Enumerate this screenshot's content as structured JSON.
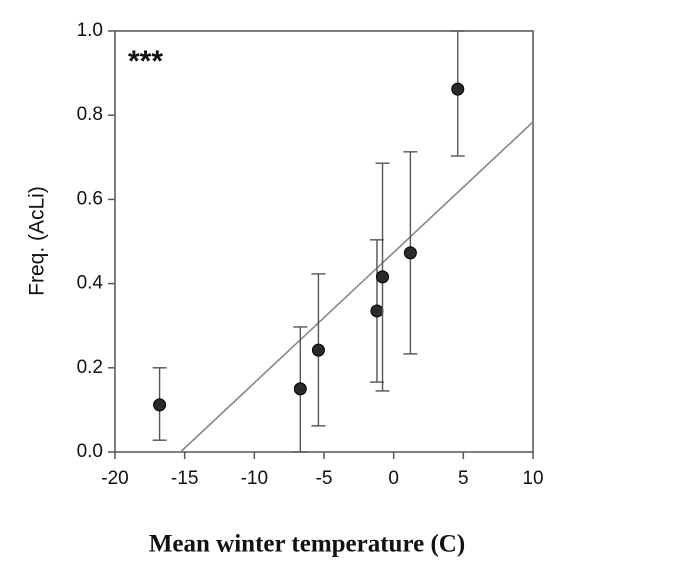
{
  "chart_data": {
    "type": "scatter",
    "annotation": "***",
    "y_label": "Freq. (AcLi)",
    "x_label": "Mean winter temperature (C)",
    "x": [
      -16.8,
      -6.7,
      -5.4,
      -1.2,
      -0.8,
      1.2,
      4.6
    ],
    "values": [
      0.112,
      0.15,
      0.242,
      0.335,
      0.416,
      0.473,
      0.862
    ],
    "lower": [
      0.028,
      0.0,
      0.062,
      0.166,
      0.145,
      0.233,
      0.703
    ],
    "upper": [
      0.2,
      0.297,
      0.423,
      0.504,
      0.686,
      0.713,
      1.0
    ],
    "color": "#2a2a2a",
    "fit": {
      "x": [
        -15.3,
        10
      ],
      "y": [
        0,
        0.784
      ],
      "color": "#888888"
    },
    "xlim": [
      -20,
      10
    ],
    "xticks": [
      -20,
      -15,
      -10,
      -5,
      0,
      5,
      10
    ],
    "ylim": [
      0,
      1
    ],
    "yticks": [
      {
        "value": 0,
        "label": "0.0"
      },
      0.2,
      0.4,
      0.6,
      0.8,
      {
        "value": 1,
        "label": "1.0"
      }
    ]
  }
}
